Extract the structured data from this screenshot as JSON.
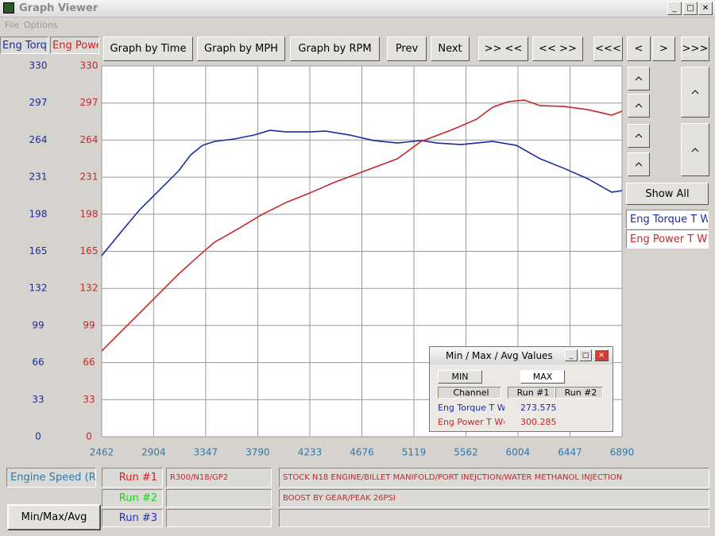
{
  "window": {
    "title": "Graph Viewer",
    "menu": [
      "File",
      "Options"
    ]
  },
  "toolbar": {
    "buttons": [
      "Graph by Time",
      "Graph by MPH",
      "Graph by RPM",
      "Prev",
      "Next",
      ">> <<",
      "<< >>",
      "<<<",
      "<",
      ">",
      ">>>"
    ]
  },
  "chart_data": {
    "type": "line",
    "xlabel": "Engine Speed (Rl",
    "ylabel": "Eng Torq",
    "y2label": "Eng Powe",
    "xlim": [
      2462,
      6890
    ],
    "xticks": [
      2462,
      2904,
      3347,
      3790,
      4233,
      4676,
      5119,
      5562,
      6004,
      6447,
      6890
    ],
    "ylim": [
      0,
      330
    ],
    "yticks": [
      0,
      33,
      66,
      99,
      132,
      165,
      198,
      231,
      264,
      297,
      330
    ],
    "y2lim": [
      0,
      330
    ],
    "y2ticks": [
      0,
      33,
      66,
      99,
      132,
      165,
      198,
      231,
      264,
      297,
      330
    ],
    "grid": true,
    "series": [
      {
        "name": "Eng Torque T W",
        "color": "#1a2ba0",
        "x": [
          2462,
          2611,
          2780,
          2949,
          3118,
          3219,
          3320,
          3422,
          3591,
          3760,
          3895,
          4030,
          4233,
          4368,
          4571,
          4774,
          4977,
          5180,
          5315,
          5518,
          5788,
          5991,
          6194,
          6397,
          6599,
          6802,
          6890
        ],
        "values": [
          161.1,
          180.2,
          201.4,
          219.0,
          236.7,
          250.8,
          259.3,
          262.8,
          265.0,
          268.5,
          272.7,
          271.3,
          271.3,
          272.0,
          268.5,
          263.6,
          261.4,
          263.6,
          261.4,
          260.0,
          262.8,
          259.3,
          247.3,
          238.8,
          229.6,
          217.6,
          219.0
        ]
      },
      {
        "name": "Eng Power T WC",
        "color": "#c42828",
        "axis": "y2",
        "x": [
          2462,
          2611,
          2780,
          2949,
          3118,
          3320,
          3422,
          3625,
          3827,
          4030,
          4233,
          4436,
          4706,
          4977,
          5180,
          5450,
          5653,
          5788,
          5923,
          6058,
          6194,
          6397,
          6599,
          6802,
          6890
        ],
        "values": [
          76.3,
          91.9,
          109.5,
          127.2,
          144.9,
          163.9,
          173.1,
          185.1,
          197.8,
          208.4,
          216.9,
          226.1,
          236.7,
          247.3,
          262.8,
          273.5,
          282.6,
          293.2,
          298.2,
          299.6,
          294.6,
          293.9,
          291.1,
          286.2,
          289.7
        ]
      }
    ]
  },
  "side": {
    "show_all": "Show All"
  },
  "runs": [
    {
      "label": "Run #1",
      "color": "#d02020",
      "desc": "R300/N18/GP2"
    },
    {
      "label": "Run #2",
      "color": "#20d020",
      "desc": ""
    },
    {
      "label": "Run #3",
      "color": "#2030c0",
      "desc": ""
    }
  ],
  "notes": [
    "STOCK N18 ENGINE/BILLET MANIFOLD/PORT INEJCTION/WATER METHANOL INJECTION",
    "BOOST BY GEAR/PEAK 26PSI"
  ],
  "min_max_button": "Min/Max/Avg",
  "dialog": {
    "title": "Min / Max / Avg Values",
    "tabs": [
      "MIN",
      "MAX"
    ],
    "columns": [
      "Channel",
      "Run #1",
      "Run #2"
    ],
    "rows": [
      [
        "Eng Torque T W",
        "273.575"
      ],
      [
        "Eng Power T W(",
        "300.285"
      ]
    ]
  }
}
